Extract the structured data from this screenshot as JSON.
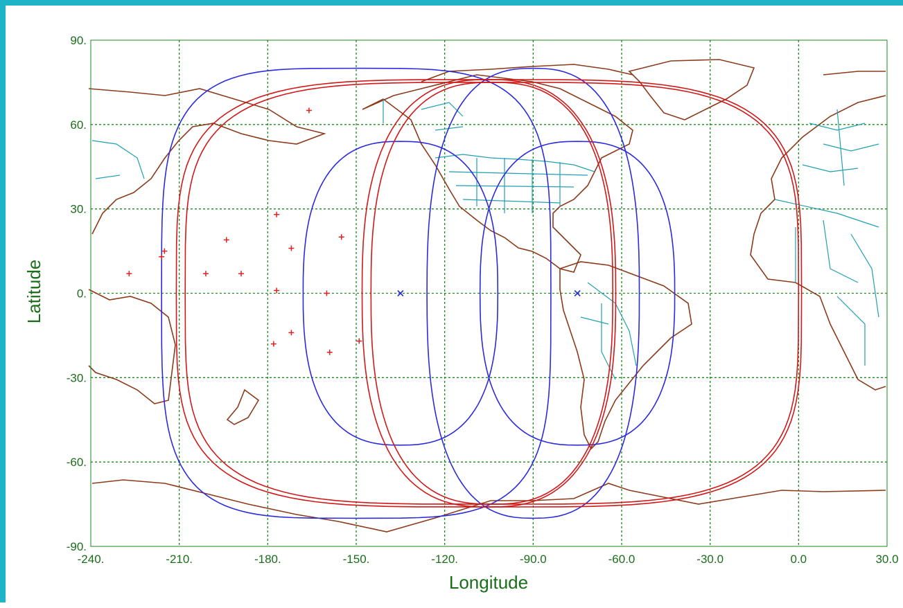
{
  "axes": {
    "xlabel": "Longitude",
    "ylabel": "Latitude",
    "xlim": [
      -240,
      30
    ],
    "ylim": [
      -90,
      90
    ],
    "x_ticks": [
      {
        "value": -240,
        "label": "-240."
      },
      {
        "value": -210,
        "label": "-210."
      },
      {
        "value": -180,
        "label": "-180."
      },
      {
        "value": -150,
        "label": "-150."
      },
      {
        "value": -120,
        "label": "-120."
      },
      {
        "value": -90,
        "label": "-90.0"
      },
      {
        "value": -60,
        "label": "-60.0"
      },
      {
        "value": -30,
        "label": "-30.0"
      },
      {
        "value": 0,
        "label": "0.0"
      },
      {
        "value": 30,
        "label": "30.0"
      }
    ],
    "y_ticks": [
      {
        "value": 90,
        "label": "90."
      },
      {
        "value": 60,
        "label": "60."
      },
      {
        "value": 30,
        "label": "30."
      },
      {
        "value": 0,
        "label": "0."
      },
      {
        "value": -30,
        "label": "-30."
      },
      {
        "value": -60,
        "label": "-60."
      },
      {
        "value": -90,
        "label": "-90."
      }
    ],
    "grid": true
  },
  "colors": {
    "frame": "#1fb3c8",
    "axis_text": "#1a6e1a",
    "grid": "#1a8a1a",
    "coastline": "#8b3a1a",
    "borders": "#20a0b0",
    "coverage_blue": "#2a2adf",
    "coverage_red": "#d01818",
    "markers": "#e02020"
  },
  "chart_data": {
    "type": "scatter",
    "series": [
      {
        "color": "blue",
        "points": [
          {
            "x": -135,
            "y": 0
          },
          {
            "x": -75,
            "y": 0
          }
        ]
      }
    ]
  },
  "satellites": [
    {
      "lon": -135,
      "lat": 0
    },
    {
      "lon": -75,
      "lat": 0
    }
  ],
  "coverage": [
    {
      "lon": -135,
      "lat": 0,
      "half_width": 33,
      "half_height": 54,
      "color": "blue"
    },
    {
      "lon": -75,
      "lat": 0,
      "half_width": 33,
      "half_height": 54,
      "color": "blue"
    },
    {
      "lon": -150,
      "lat": 0,
      "half_width": 66,
      "half_height": 80,
      "color": "blue"
    },
    {
      "lon": -90,
      "lat": 0,
      "half_width": 36,
      "half_height": 80,
      "color": "blue"
    },
    {
      "lon": -105,
      "lat": 0,
      "half_width": 106,
      "half_height": 76,
      "color": "red"
    },
    {
      "lon": -104,
      "lat": 0,
      "half_width": 104,
      "half_height": 75,
      "color": "red"
    },
    {
      "lon": -105,
      "lat": 0,
      "half_width": 43,
      "half_height": 76,
      "color": "red"
    },
    {
      "lon": -104,
      "lat": 0,
      "half_width": 41,
      "half_height": 75,
      "color": "red"
    }
  ],
  "island_markers": [
    {
      "lon": -227,
      "lat": 7
    },
    {
      "lon": -215,
      "lat": 15
    },
    {
      "lon": -216,
      "lat": 13
    },
    {
      "lon": -201,
      "lat": 7
    },
    {
      "lon": -194,
      "lat": 19
    },
    {
      "lon": -189,
      "lat": 7
    },
    {
      "lon": -172,
      "lat": 16
    },
    {
      "lon": -177,
      "lat": 1
    },
    {
      "lon": -160,
      "lat": 0
    },
    {
      "lon": -172,
      "lat": -14
    },
    {
      "lon": -178,
      "lat": -18
    },
    {
      "lon": -159,
      "lat": -21
    },
    {
      "lon": -155,
      "lat": 20
    },
    {
      "lon": -177,
      "lat": 28
    },
    {
      "lon": -149,
      "lat": -17
    },
    {
      "lon": -166,
      "lat": 65
    }
  ]
}
